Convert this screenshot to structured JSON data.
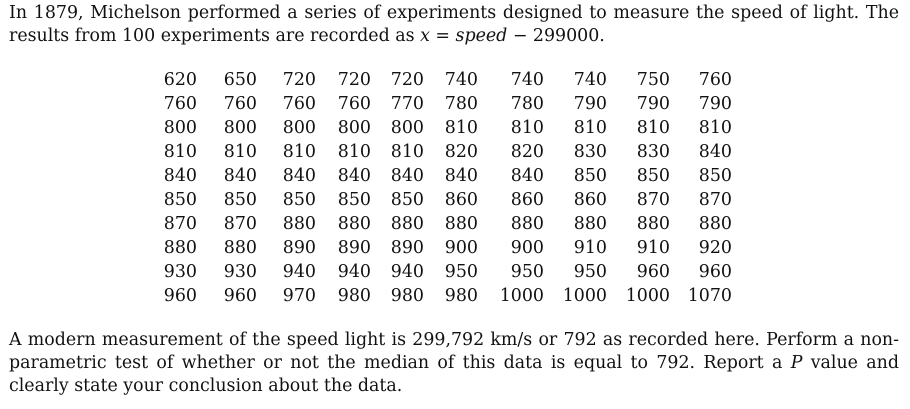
{
  "intro": {
    "text_before_expr": "In 1879, Michelson performed a series of experiments designed to measure the speed of light. The results from 100 experiments are recorded as ",
    "expr_var": "x",
    "expr_eq": " = ",
    "expr_speed": "speed",
    "expr_rest": " − 299000."
  },
  "table": {
    "rows": [
      [
        "620",
        "650",
        "720",
        "720",
        "720",
        "740",
        "740",
        "740",
        "750",
        "760"
      ],
      [
        "760",
        "760",
        "760",
        "760",
        "770",
        "780",
        "780",
        "790",
        "790",
        "790"
      ],
      [
        "800",
        "800",
        "800",
        "800",
        "800",
        "810",
        "810",
        "810",
        "810",
        "810"
      ],
      [
        "810",
        "810",
        "810",
        "810",
        "810",
        "820",
        "820",
        "830",
        "830",
        "840"
      ],
      [
        "840",
        "840",
        "840",
        "840",
        "840",
        "840",
        "840",
        "850",
        "850",
        "850"
      ],
      [
        "850",
        "850",
        "850",
        "850",
        "850",
        "860",
        "860",
        "860",
        "870",
        "870"
      ],
      [
        "870",
        "870",
        "880",
        "880",
        "880",
        "880",
        "880",
        "880",
        "880",
        "880"
      ],
      [
        "880",
        "880",
        "890",
        "890",
        "890",
        "900",
        "900",
        "910",
        "910",
        "920"
      ],
      [
        "930",
        "930",
        "940",
        "940",
        "940",
        "950",
        "950",
        "950",
        "960",
        "960"
      ],
      [
        "960",
        "960",
        "970",
        "980",
        "980",
        "980",
        "1000",
        "1000",
        "1000",
        "1070"
      ]
    ]
  },
  "task": {
    "text_before_p": "A modern measurement of the speed light is 299,792 km/s or 792 as recorded here. Perform a non-parametric test of whether or not the median of this data is equal to 792. Report a ",
    "p_symbol": "P",
    "text_after_p": " value and clearly state your conclusion about the data."
  }
}
